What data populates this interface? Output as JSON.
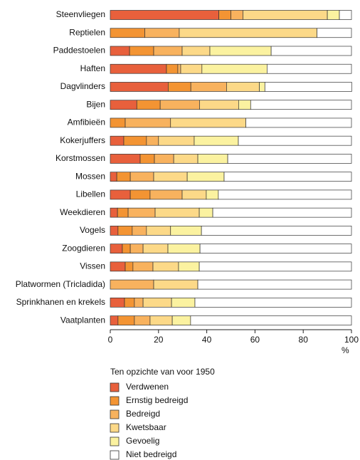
{
  "chart_data": {
    "type": "stacked-barh",
    "categories": [
      "Steenvliegen",
      "Reptielen",
      "Paddestoelen",
      "Haften",
      "Dagvlinders",
      "Bijen",
      "Amfibieën",
      "Kokerjuffers",
      "Korstmossen",
      "Mossen",
      "Libellen",
      "Weekdieren",
      "Vogels",
      "Zoogdieren",
      "Vissen",
      "Platwormen (Tricladida)",
      "Sprinkhanen en krekels",
      "Vaatplanten"
    ],
    "series": [
      {
        "name": "Verdwenen",
        "color": "#e8603c",
        "values": [
          45,
          0,
          8,
          23.3,
          24,
          11,
          0,
          5.6,
          12.4,
          2.7,
          8.3,
          3,
          3.2,
          5,
          6.2,
          0,
          5.9,
          3.2
        ]
      },
      {
        "name": "Ernstig bedreigd",
        "color": "#f39433",
        "values": [
          5,
          14.3,
          10,
          4.7,
          9.4,
          9.7,
          6.2,
          9.4,
          5.9,
          5.6,
          8.2,
          4.4,
          5.9,
          3.3,
          3.2,
          0,
          4.1,
          6.8
        ]
      },
      {
        "name": "Bedreigd",
        "color": "#f8b25e",
        "values": [
          5,
          14.3,
          11.8,
          1.2,
          14.8,
          16.3,
          18.8,
          5,
          8,
          9.7,
          13.3,
          11.2,
          5.9,
          5.3,
          8.3,
          18,
          3.6,
          6.5
        ]
      },
      {
        "name": "Kwetsbaar",
        "color": "#fcd988",
        "values": [
          35,
          57.1,
          11.5,
          8.8,
          13.6,
          16.2,
          31.2,
          14.8,
          10,
          13.9,
          10,
          18.3,
          10,
          10.3,
          10.6,
          18.3,
          11.8,
          9.2
        ]
      },
      {
        "name": "Gevoelig",
        "color": "#fbf2a0",
        "values": [
          5,
          0,
          25.4,
          27,
          2.3,
          5,
          0,
          18.3,
          12.4,
          15.3,
          5,
          5.6,
          12.8,
          13.3,
          8.6,
          0,
          9.7,
          7.6
        ]
      },
      {
        "name": "Niet bedreigd",
        "color": "#ffffff",
        "values": [
          5,
          14.3,
          33.3,
          35,
          36,
          41.8,
          43.8,
          46.9,
          51.3,
          52.8,
          55.2,
          57.5,
          62.2,
          62.8,
          63.1,
          63.7,
          64.9,
          66.7
        ]
      }
    ],
    "xlim": [
      0,
      100
    ],
    "xticks": [
      0,
      20,
      40,
      60,
      80,
      100
    ],
    "xlabel": "%",
    "legend_title": "Ten opzichte van voor 1950"
  }
}
